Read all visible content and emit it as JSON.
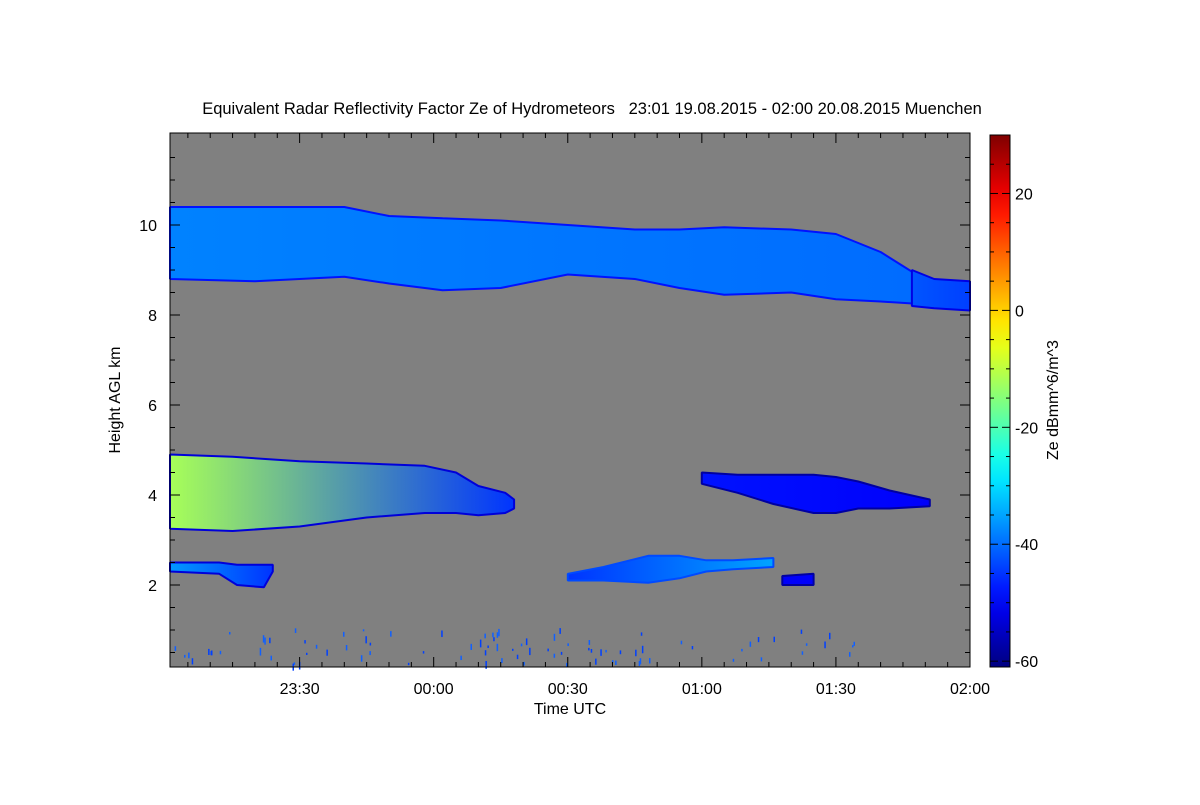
{
  "chart_data": {
    "type": "heatmap",
    "title": "Equivalent Radar Reflectivity Factor Ze of Hydrometeors   23:01 19.08.2015 - 02:00 20.08.2015 Muenchen",
    "xlabel": "Time UTC",
    "ylabel": "Height AGL km",
    "colorbar_label": "Ze dBmm^6/m^3",
    "x_unit": "minutes after 23:00 UTC 19.08.2015",
    "xlim": [
      1,
      180
    ],
    "ylim": [
      0.2,
      12
    ],
    "clim": [
      -61,
      30
    ],
    "colormap": "jet",
    "background_color": "#808080",
    "x_ticks": [
      {
        "value": 30,
        "label": "23:30"
      },
      {
        "value": 60,
        "label": "00:00"
      },
      {
        "value": 90,
        "label": "00:30"
      },
      {
        "value": 120,
        "label": "01:00"
      },
      {
        "value": 150,
        "label": "01:30"
      },
      {
        "value": 180,
        "label": "02:00"
      }
    ],
    "y_ticks": [
      {
        "value": 2,
        "label": "2"
      },
      {
        "value": 4,
        "label": "4"
      },
      {
        "value": 6,
        "label": "6"
      },
      {
        "value": 8,
        "label": "8"
      },
      {
        "value": 10,
        "label": "10"
      }
    ],
    "c_ticks": [
      {
        "value": -60,
        "label": "-60"
      },
      {
        "value": -40,
        "label": "-40"
      },
      {
        "value": -20,
        "label": "-20"
      },
      {
        "value": 0,
        "label": "0"
      },
      {
        "value": 20,
        "label": "20"
      }
    ],
    "cloud_layers": [
      {
        "name": "cirrus-layer",
        "ze_left": -38,
        "ze_right": -40,
        "profile": [
          [
            1,
            8.8,
            10.4
          ],
          [
            20,
            8.75,
            10.4
          ],
          [
            40,
            8.85,
            10.4
          ],
          [
            50,
            8.7,
            10.2
          ],
          [
            62,
            8.55,
            10.15
          ],
          [
            75,
            8.6,
            10.1
          ],
          [
            90,
            8.9,
            10.0
          ],
          [
            105,
            8.8,
            9.9
          ],
          [
            115,
            8.6,
            9.9
          ],
          [
            125,
            8.45,
            9.95
          ],
          [
            140,
            8.5,
            9.9
          ],
          [
            150,
            8.35,
            9.8
          ],
          [
            160,
            8.3,
            9.4
          ],
          [
            168,
            8.25,
            8.9
          ]
        ]
      },
      {
        "name": "cirrus-tail",
        "ze_left": -42,
        "ze_right": -44,
        "profile": [
          [
            167,
            8.2,
            9.0
          ],
          [
            172,
            8.15,
            8.8
          ],
          [
            180,
            8.1,
            8.75
          ]
        ]
      },
      {
        "name": "mid-layer-1",
        "ze_left": -12,
        "ze_right": -45,
        "profile": [
          [
            1,
            3.25,
            4.9
          ],
          [
            15,
            3.2,
            4.85
          ],
          [
            30,
            3.3,
            4.75
          ],
          [
            45,
            3.5,
            4.7
          ],
          [
            58,
            3.6,
            4.65
          ],
          [
            65,
            3.6,
            4.5
          ],
          [
            70,
            3.55,
            4.2
          ],
          [
            76,
            3.6,
            4.05
          ],
          [
            78,
            3.7,
            3.9
          ]
        ]
      },
      {
        "name": "mid-layer-2",
        "ze_left": -48,
        "ze_right": -50,
        "profile": [
          [
            120,
            4.25,
            4.5
          ],
          [
            128,
            4.05,
            4.45
          ],
          [
            136,
            3.8,
            4.45
          ],
          [
            145,
            3.6,
            4.45
          ],
          [
            150,
            3.6,
            4.4
          ],
          [
            155,
            3.7,
            4.3
          ],
          [
            162,
            3.7,
            4.1
          ],
          [
            171,
            3.75,
            3.9
          ]
        ]
      },
      {
        "name": "low-layer-1",
        "ze_left": -36,
        "ze_right": -45,
        "profile": [
          [
            1,
            2.3,
            2.5
          ],
          [
            12,
            2.25,
            2.5
          ],
          [
            16,
            2.0,
            2.45
          ],
          [
            22,
            1.95,
            2.45
          ],
          [
            24,
            2.3,
            2.45
          ]
        ]
      },
      {
        "name": "low-layer-2",
        "ze_left": -45,
        "ze_right": -35,
        "profile": [
          [
            90,
            2.1,
            2.25
          ],
          [
            98,
            2.1,
            2.4
          ],
          [
            108,
            2.05,
            2.65
          ],
          [
            115,
            2.15,
            2.65
          ],
          [
            121,
            2.3,
            2.55
          ],
          [
            127,
            2.35,
            2.55
          ],
          [
            136,
            2.4,
            2.6
          ]
        ]
      },
      {
        "name": "low-patch",
        "ze_left": -50,
        "ze_right": -50,
        "profile": [
          [
            138,
            2.0,
            2.2
          ],
          [
            145,
            2.0,
            2.25
          ]
        ]
      }
    ]
  }
}
